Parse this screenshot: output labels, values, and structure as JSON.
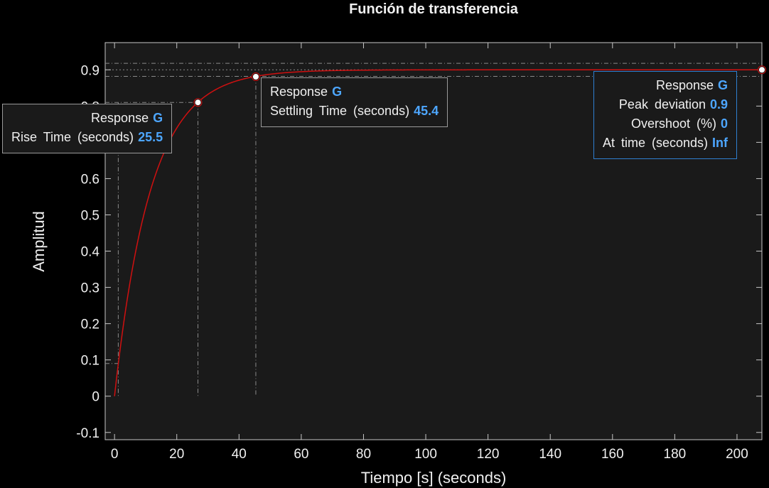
{
  "chart_data": {
    "type": "line",
    "title": "Función de transferencia",
    "xlabel": "Tiempo [s] (seconds)",
    "ylabel": "Amplitud",
    "xlim": [
      -3,
      208
    ],
    "ylim": [
      -0.12,
      0.975
    ],
    "xticks": [
      0,
      20,
      40,
      60,
      80,
      100,
      120,
      140,
      160,
      180,
      200
    ],
    "yticks": [
      -0.1,
      0,
      0.1,
      0.2,
      0.3,
      0.4,
      0.5,
      0.6,
      0.7,
      0.8,
      0.9
    ],
    "ytick_labels": [
      "-0.1",
      "0",
      "0.1",
      "0.2",
      "0.3",
      "0.4",
      "0.5",
      "0.6",
      "0.7",
      "0.8",
      "0.9"
    ],
    "grid": false,
    "series": [
      {
        "name": "G",
        "model": "first-order step response",
        "gain": 0.9,
        "time_constant": 11.6,
        "t_start": 0,
        "t_end": 208,
        "color": "#d01010"
      }
    ],
    "markers": [
      {
        "x": 26.8,
        "y": 0.81
      },
      {
        "x": 45.4,
        "y": 0.881
      },
      {
        "x": 208,
        "y": 0.9
      }
    ],
    "rise_guides": {
      "x_start": 1.2,
      "x_end": 26.8,
      "y_low": 0.09,
      "y_high": 0.81
    },
    "settling_guides": {
      "x": 45.4,
      "y_upper": 0.918,
      "y_lower": 0.882
    },
    "final_value": 0.9
  },
  "tooltips": {
    "rise": {
      "response_label": "Response",
      "response_value": "G",
      "metric_label": "Rise Time (seconds)",
      "metric_value": "25.5"
    },
    "settling": {
      "response_label": "Response",
      "response_value": "G",
      "metric_label": "Settling Time (seconds)",
      "metric_value": "45.4"
    },
    "peak": {
      "response_label": "Response",
      "response_value": "G",
      "deviation_label": "Peak deviation",
      "deviation_value": "0.9",
      "overshoot_label": "Overshoot (%)",
      "overshoot_value": "0",
      "time_label": "At time (seconds)",
      "time_value": "Inf"
    }
  },
  "colors": {
    "background": "#000000",
    "axes_bg": "#1a1a1a",
    "axis": "#c8c8c8",
    "text": "#f0f0f0",
    "curve": "#d01010",
    "value": "#4da6ff",
    "selected_border": "#2f7fd0",
    "guide": "#8a8a8a"
  }
}
